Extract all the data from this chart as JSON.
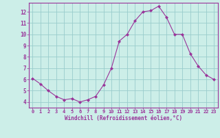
{
  "x": [
    0,
    1,
    2,
    3,
    4,
    5,
    6,
    7,
    8,
    9,
    10,
    11,
    12,
    13,
    14,
    15,
    16,
    17,
    18,
    19,
    20,
    21,
    22,
    23
  ],
  "y": [
    6.1,
    5.6,
    5.0,
    4.5,
    4.2,
    4.3,
    4.0,
    4.2,
    4.5,
    5.5,
    7.0,
    9.4,
    10.0,
    11.2,
    12.0,
    12.1,
    12.5,
    11.5,
    10.0,
    10.0,
    8.3,
    7.2,
    6.4,
    6.0
  ],
  "line_color": "#993399",
  "marker": "D",
  "marker_size": 2.2,
  "bg_color": "#cceee8",
  "grid_color": "#99cccc",
  "xlabel": "Windchill (Refroidissement éolien,°C)",
  "xlabel_color": "#993399",
  "tick_color": "#993399",
  "ylim": [
    3.5,
    12.8
  ],
  "xlim": [
    -0.5,
    23.5
  ],
  "yticks": [
    4,
    5,
    6,
    7,
    8,
    9,
    10,
    11,
    12
  ],
  "xticks": [
    0,
    1,
    2,
    3,
    4,
    5,
    6,
    7,
    8,
    9,
    10,
    11,
    12,
    13,
    14,
    15,
    16,
    17,
    18,
    19,
    20,
    21,
    22,
    23
  ]
}
